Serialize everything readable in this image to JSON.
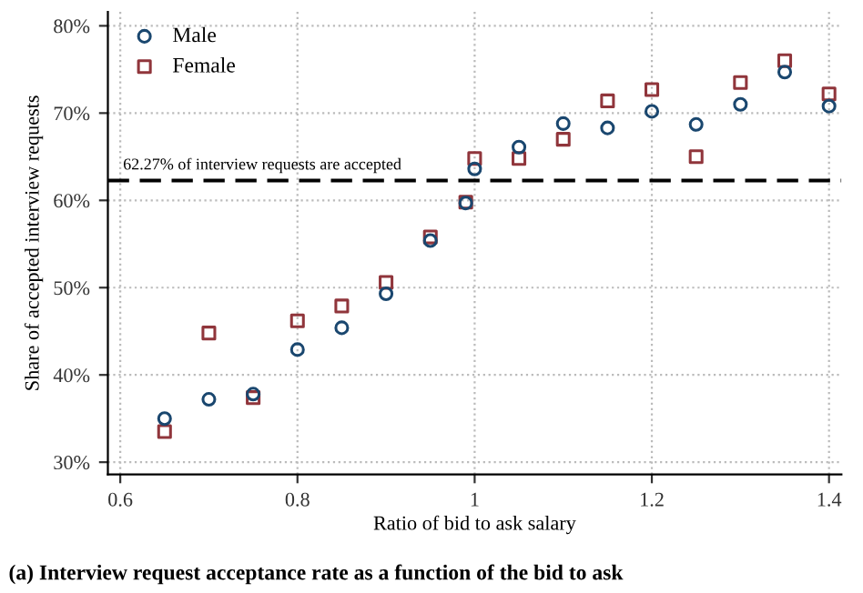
{
  "chart_data": {
    "type": "scatter",
    "xlabel": "Ratio of bid to ask salary",
    "ylabel": "Share of accepted interview requests",
    "x": [
      0.65,
      0.7,
      0.75,
      0.8,
      0.85,
      0.9,
      0.95,
      0.99,
      1.0,
      1.05,
      1.1,
      1.15,
      1.2,
      1.25,
      1.3,
      1.35,
      1.4
    ],
    "series": [
      {
        "name": "Male",
        "color": "#1a476f",
        "marker": "circle",
        "values": [
          35.0,
          37.2,
          37.8,
          42.9,
          45.4,
          49.3,
          55.4,
          59.7,
          63.6,
          66.1,
          68.8,
          68.3,
          70.2,
          68.7,
          71.0,
          74.7,
          70.8
        ]
      },
      {
        "name": "Female",
        "color": "#90353b",
        "marker": "square",
        "values": [
          33.5,
          44.8,
          37.4,
          46.2,
          47.9,
          50.6,
          55.8,
          59.8,
          64.8,
          64.8,
          67.0,
          71.4,
          72.7,
          65.0,
          73.5,
          76.0,
          72.2
        ]
      }
    ],
    "xlim": [
      0.586,
      1.414
    ],
    "ylim": [
      28.6,
      81.6
    ],
    "xticks": [
      0.6,
      0.8,
      {
        "value": 1,
        "label": "1"
      },
      1.2,
      1.4
    ],
    "yticks": [
      {
        "value": 30,
        "label": "30%"
      },
      {
        "value": 40,
        "label": "40%"
      },
      {
        "value": 50,
        "label": "50%"
      },
      {
        "value": 60,
        "label": "60%"
      },
      {
        "value": 70,
        "label": "70%"
      },
      {
        "value": 80,
        "label": "80%"
      }
    ],
    "ref_lines": [
      {
        "axis": "y",
        "value": 62.27,
        "label": "62.27% of interview requests are accepted",
        "color": "#000000",
        "line_style": "dashed"
      }
    ],
    "grid": true,
    "legend": "top left",
    "annotations": [
      "(a) Interview request acceptance rate as a function of the bid to ask"
    ]
  }
}
